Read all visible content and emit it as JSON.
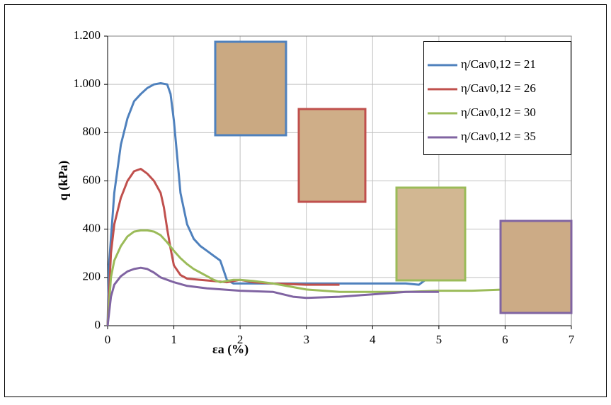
{
  "chart_data": {
    "type": "line",
    "xlabel": "εa (%)",
    "ylabel": "q (kPa)",
    "xlim": [
      0,
      7
    ],
    "xticks": [
      0,
      1,
      2,
      3,
      4,
      5,
      6,
      7
    ],
    "ylim": [
      0,
      1200
    ],
    "yticks": [
      0,
      200,
      400,
      600,
      800,
      {
        "value": 1000,
        "label": "1.000"
      },
      {
        "value": 1200,
        "label": "1.200"
      }
    ],
    "grid": true,
    "legend": "upper right",
    "series": [
      {
        "name": "η/Cav0,12 = 21",
        "color": "#4f81bd",
        "x": [
          0,
          0.02,
          0.1,
          0.2,
          0.3,
          0.4,
          0.5,
          0.6,
          0.7,
          0.8,
          0.9,
          0.95,
          1.0,
          1.05,
          1.1,
          1.2,
          1.3,
          1.4,
          1.5,
          1.6,
          1.7,
          1.75,
          1.8,
          1.9,
          2.0,
          2.5,
          3.0,
          3.5,
          4.0,
          4.5,
          4.7,
          4.8,
          4.9
        ],
        "values": [
          0,
          250,
          550,
          750,
          860,
          930,
          960,
          985,
          1000,
          1005,
          1000,
          960,
          850,
          700,
          550,
          420,
          360,
          330,
          310,
          290,
          270,
          230,
          190,
          175,
          175,
          175,
          175,
          175,
          175,
          175,
          170,
          190,
          200
        ]
      },
      {
        "name": "η/Cav0,12 = 26",
        "color": "#c0504d",
        "x": [
          0,
          0.05,
          0.1,
          0.2,
          0.3,
          0.4,
          0.5,
          0.6,
          0.7,
          0.8,
          0.85,
          0.9,
          0.95,
          1.0,
          1.1,
          1.2,
          1.4,
          1.6,
          1.8,
          2.0,
          2.2,
          2.5,
          3.0,
          3.5
        ],
        "values": [
          0,
          300,
          420,
          530,
          600,
          640,
          650,
          630,
          600,
          550,
          490,
          400,
          320,
          250,
          210,
          195,
          190,
          185,
          180,
          190,
          180,
          175,
          170,
          170
        ]
      },
      {
        "name": "η/Cav0,12 = 30",
        "color": "#9bbb59",
        "x": [
          0,
          0.05,
          0.1,
          0.2,
          0.3,
          0.4,
          0.5,
          0.6,
          0.7,
          0.8,
          0.9,
          1.0,
          1.1,
          1.2,
          1.3,
          1.4,
          1.5,
          1.6,
          1.7,
          1.8,
          1.9,
          2.0,
          2.2,
          2.5,
          3.0,
          3.5,
          4.0,
          4.5,
          5.0,
          5.5,
          6.0,
          6.4
        ],
        "values": [
          0,
          200,
          270,
          330,
          370,
          390,
          395,
          395,
          390,
          375,
          345,
          310,
          280,
          255,
          235,
          220,
          205,
          190,
          180,
          185,
          190,
          190,
          185,
          175,
          150,
          140,
          140,
          140,
          145,
          145,
          150,
          150
        ]
      },
      {
        "name": "η/Cav0,12 = 35",
        "color": "#8064a2",
        "x": [
          0,
          0.05,
          0.1,
          0.2,
          0.3,
          0.4,
          0.5,
          0.6,
          0.7,
          0.8,
          0.9,
          1.0,
          1.2,
          1.5,
          2.0,
          2.5,
          2.8,
          3.0,
          3.5,
          4.0,
          4.5,
          5.0
        ],
        "values": [
          0,
          120,
          170,
          205,
          225,
          235,
          240,
          235,
          220,
          200,
          190,
          180,
          165,
          155,
          145,
          140,
          120,
          115,
          120,
          130,
          140,
          140
        ]
      }
    ]
  }
}
